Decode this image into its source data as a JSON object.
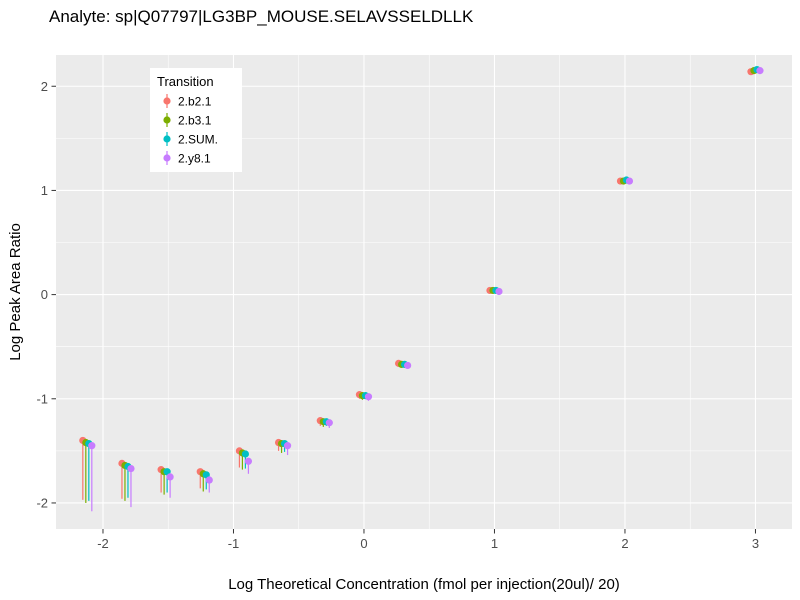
{
  "chart_data": {
    "type": "scatter",
    "title": "Analyte: sp|Q07797|LG3BP_MOUSE.SELAVSSELDLLK",
    "xlabel": "Log Theoretical Concentration (fmol per injection(20ul)/ 20)",
    "ylabel": "Log Peak Area Ratio",
    "legend_title": "Transition",
    "legend_position": "top-left-inside-panel",
    "panel_bg": "#EBEBEB",
    "grid_color": "#FFFFFF",
    "tick_label_color": "#4D4D4D",
    "xlim": [
      -2.36,
      3.28
    ],
    "ylim": [
      -2.25,
      2.3
    ],
    "xticks": [
      -2,
      -1,
      0,
      1,
      2,
      3
    ],
    "yticks": [
      -2,
      -1,
      0,
      1,
      2
    ],
    "grid": "on",
    "x": [
      -2.12,
      -1.82,
      -1.52,
      -1.22,
      -0.92,
      -0.62,
      -0.3,
      0,
      0.3,
      1,
      2,
      3
    ],
    "series": [
      {
        "name": "2.b2.1",
        "color": "#F8766D",
        "y": [
          -1.4,
          -1.62,
          -1.68,
          -1.7,
          -1.5,
          -1.42,
          -1.21,
          -0.96,
          -0.66,
          0.04,
          1.09,
          2.14
        ],
        "ymin": [
          -1.97,
          -1.96,
          -1.9,
          -1.86,
          -1.66,
          -1.5,
          -1.26,
          -1.0,
          -0.69,
          0.02,
          1.08,
          2.13
        ],
        "ymax": [
          -1.37,
          -1.59,
          -1.65,
          -1.67,
          -1.47,
          -1.4,
          -1.19,
          -0.94,
          -0.64,
          0.05,
          1.1,
          2.15
        ]
      },
      {
        "name": "2.b3.1",
        "color": "#7CAE00",
        "y": [
          -1.42,
          -1.64,
          -1.7,
          -1.72,
          -1.52,
          -1.43,
          -1.22,
          -0.97,
          -0.67,
          0.04,
          1.09,
          2.15
        ],
        "ymin": [
          -2.0,
          -1.98,
          -1.92,
          -1.89,
          -1.68,
          -1.52,
          -1.27,
          -1.01,
          -0.7,
          0.02,
          1.08,
          2.14
        ],
        "ymax": [
          -1.39,
          -1.61,
          -1.67,
          -1.69,
          -1.49,
          -1.41,
          -1.2,
          -0.95,
          -0.65,
          0.05,
          1.1,
          2.16
        ]
      },
      {
        "name": "2.SUM.",
        "color": "#00BFC4",
        "y": [
          -1.43,
          -1.65,
          -1.7,
          -1.73,
          -1.53,
          -1.43,
          -1.22,
          -0.97,
          -0.67,
          0.04,
          1.1,
          2.16
        ],
        "ymin": [
          -1.98,
          -1.95,
          -1.9,
          -1.87,
          -1.67,
          -1.51,
          -1.26,
          -1.0,
          -0.7,
          0.03,
          1.09,
          2.15
        ],
        "ymax": [
          -1.4,
          -1.62,
          -1.67,
          -1.7,
          -1.5,
          -1.41,
          -1.2,
          -0.95,
          -0.65,
          0.05,
          1.11,
          2.17
        ]
      },
      {
        "name": "2.y8.1",
        "color": "#C77CFF",
        "y": [
          -1.45,
          -1.67,
          -1.75,
          -1.78,
          -1.6,
          -1.45,
          -1.23,
          -0.98,
          -0.68,
          0.03,
          1.09,
          2.15
        ],
        "ymin": [
          -2.08,
          -2.04,
          -1.95,
          -1.9,
          -1.72,
          -1.54,
          -1.28,
          -1.02,
          -0.71,
          0.01,
          1.08,
          2.14
        ],
        "ymax": [
          -1.42,
          -1.64,
          -1.72,
          -1.75,
          -1.57,
          -1.43,
          -1.21,
          -0.96,
          -0.66,
          0.04,
          1.1,
          2.16
        ]
      }
    ]
  }
}
